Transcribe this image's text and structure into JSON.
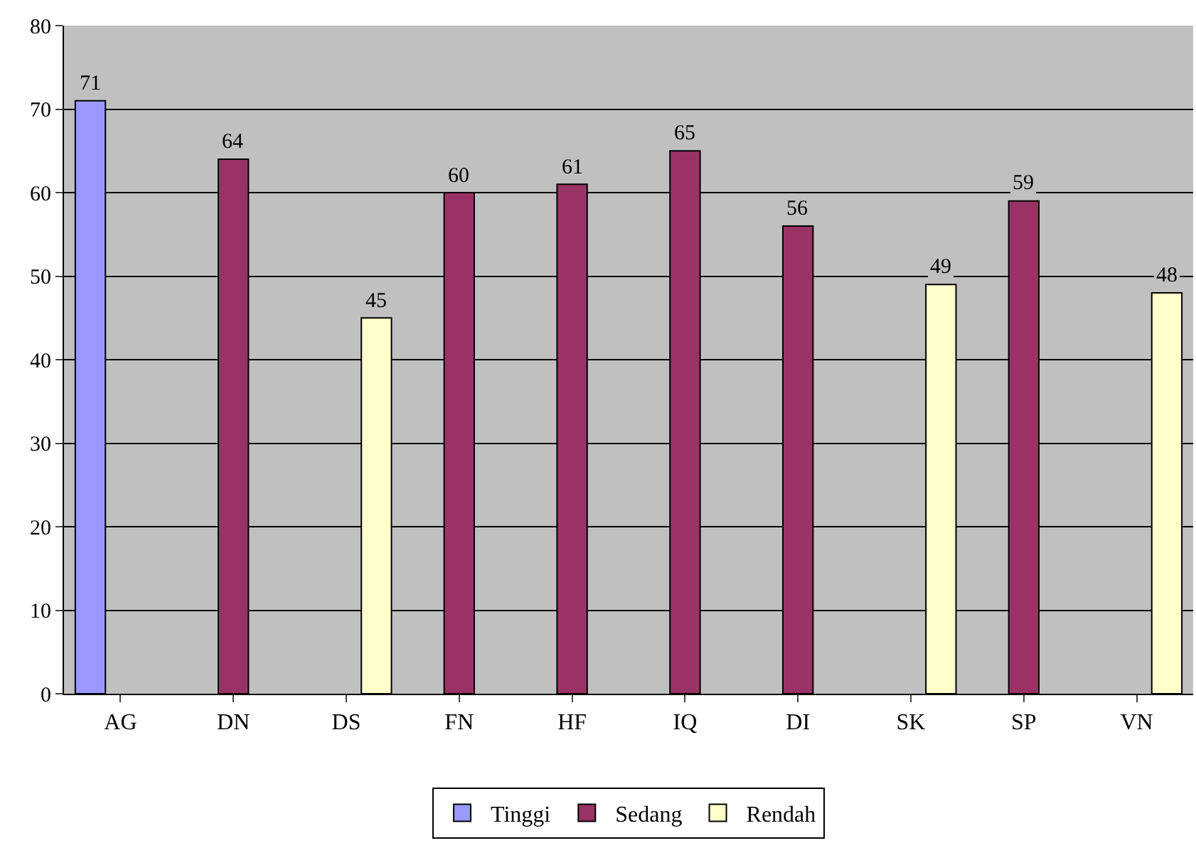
{
  "chart_data": {
    "type": "bar",
    "categories": [
      "AG",
      "DN",
      "DS",
      "FN",
      "HF",
      "IQ",
      "DI",
      "SK",
      "SP",
      "VN"
    ],
    "series": [
      {
        "name": "Tinggi",
        "color": "#9999ff",
        "values": [
          71,
          null,
          null,
          null,
          null,
          null,
          null,
          null,
          null,
          null
        ]
      },
      {
        "name": "Sedang",
        "color": "#993366",
        "values": [
          null,
          64,
          null,
          60,
          61,
          65,
          56,
          null,
          59,
          null
        ]
      },
      {
        "name": "Rendah",
        "color": "#ffffcc",
        "values": [
          null,
          null,
          45,
          null,
          null,
          null,
          null,
          49,
          null,
          48
        ]
      }
    ],
    "ylim": [
      0,
      80
    ],
    "yticks": [
      0,
      10,
      20,
      30,
      40,
      50,
      60,
      70,
      80
    ],
    "grid": "y",
    "legend": "bottom",
    "data_labels": true
  }
}
